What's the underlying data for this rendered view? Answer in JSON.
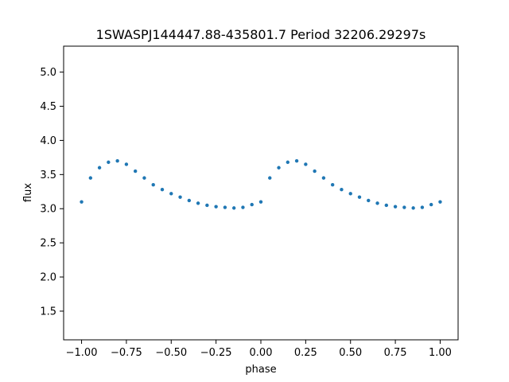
{
  "chart_data": {
    "type": "scatter",
    "title": "1SWASPJ144447.88-435801.7 Period 32206.29297s",
    "xlabel": "phase",
    "ylabel": "flux",
    "xlim": [
      -1.1,
      1.1
    ],
    "ylim": [
      1.08,
      5.38
    ],
    "x_ticks": [
      -1.0,
      -0.75,
      -0.5,
      -0.25,
      0.0,
      0.25,
      0.5,
      0.75,
      1.0
    ],
    "x_tick_labels": [
      "−1.00",
      "−0.75",
      "−0.50",
      "−0.25",
      "0.00",
      "0.25",
      "0.50",
      "0.75",
      "1.00"
    ],
    "y_ticks": [
      1.5,
      2.0,
      2.5,
      3.0,
      3.5,
      4.0,
      4.5,
      5.0
    ],
    "y_tick_labels": [
      "1.5",
      "2.0",
      "2.5",
      "3.0",
      "3.5",
      "4.0",
      "4.5",
      "5.0"
    ],
    "grid": false,
    "legend": "none",
    "colors": {
      "points": "#1f77b4"
    },
    "series": [
      {
        "x": [
          -1.0,
          -0.95,
          -0.9,
          -0.85,
          -0.8,
          -0.75,
          -0.7,
          -0.65,
          -0.6,
          -0.55,
          -0.5,
          -0.45,
          -0.4,
          -0.35,
          -0.3,
          -0.25,
          -0.2,
          -0.15,
          -0.1,
          -0.05,
          0.0,
          0.05,
          0.1,
          0.15,
          0.2,
          0.25,
          0.3,
          0.35,
          0.4,
          0.45,
          0.5,
          0.55,
          0.6,
          0.65,
          0.7,
          0.75,
          0.8,
          0.85,
          0.9,
          0.95,
          1.0
        ],
        "y": [
          3.1,
          3.45,
          3.6,
          3.68,
          3.7,
          3.65,
          3.55,
          3.45,
          3.35,
          3.28,
          3.22,
          3.17,
          3.12,
          3.08,
          3.05,
          3.03,
          3.02,
          3.01,
          3.02,
          3.06,
          3.1,
          3.45,
          3.6,
          3.68,
          3.7,
          3.65,
          3.55,
          3.45,
          3.35,
          3.28,
          3.22,
          3.17,
          3.12,
          3.08,
          3.05,
          3.03,
          3.02,
          3.01,
          3.02,
          3.06,
          3.1
        ]
      }
    ]
  }
}
